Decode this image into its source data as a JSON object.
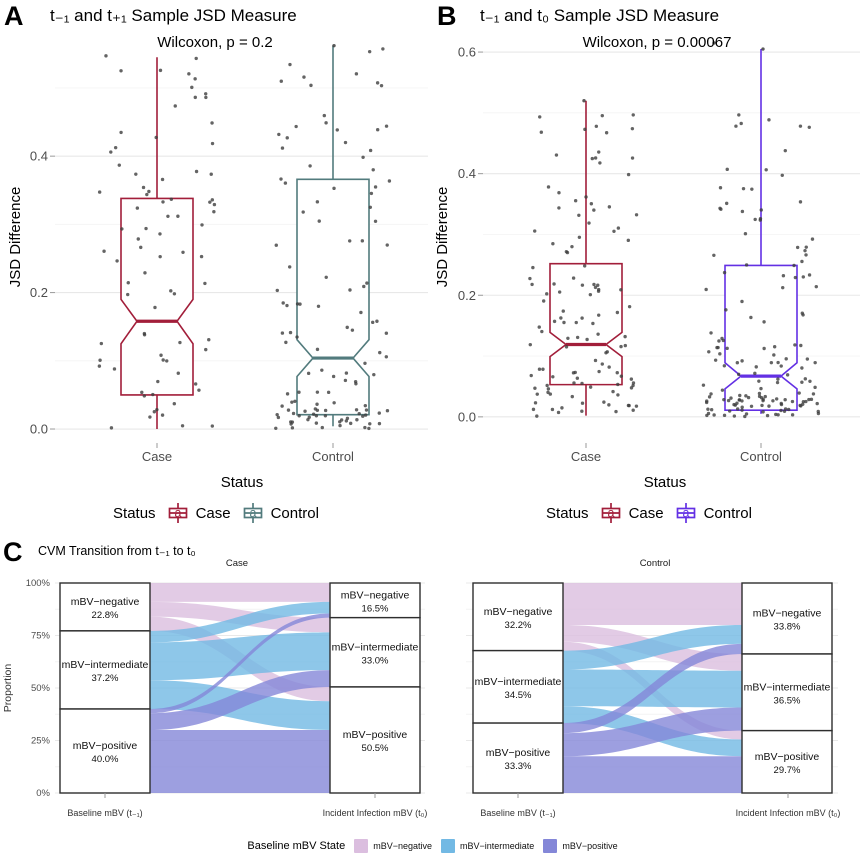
{
  "figure": {
    "panel_letters": {
      "a": "A",
      "b": "B",
      "c": "C"
    }
  },
  "chart_data": {
    "a": {
      "type": "boxplot-jitter",
      "title": "t₋₁ and t₊₁ Sample JSD Measure",
      "annotation": "Wilcoxon, p = 0.2",
      "xlabel": "Status",
      "ylabel": "JSD Difference",
      "yticks": [
        "0.0",
        "0.2",
        "0.4"
      ],
      "ytick_values": [
        0,
        0.2,
        0.4
      ],
      "ylim": [
        -0.0205,
        0.582
      ],
      "grid": true,
      "legend": {
        "title": "Status",
        "key_glyph": "a",
        "position": "bottom"
      },
      "groups": [
        {
          "label": "Case",
          "color": "#A21E3A",
          "box": {
            "whisker_low": 0.0,
            "q1": 0.05,
            "median": 0.158,
            "q3": 0.338,
            "whisker_high": 0.545,
            "notch_low": 0.125,
            "notch_high": 0.19
          },
          "points": {
            "n": 80,
            "seed": 7,
            "strata": [
              [
                0.26,
                0.0,
                0.07
              ],
              [
                0.24,
                0.07,
                0.2
              ],
              [
                0.28,
                0.2,
                0.38
              ],
              [
                0.22,
                0.38,
                0.55
              ]
            ]
          },
          "extra_points": []
        },
        {
          "label": "Control",
          "color": "#527B7D",
          "box": {
            "whisker_low": 0.004,
            "q1": 0.021,
            "median": 0.104,
            "q3": 0.366,
            "whisker_high": 0.562,
            "notch_low": 0.077,
            "notch_high": 0.131
          },
          "points": {
            "n": 120,
            "seed": 13,
            "strata": [
              [
                0.3,
                0.0,
                0.03
              ],
              [
                0.17,
                0.03,
                0.12
              ],
              [
                0.23,
                0.12,
                0.3
              ],
              [
                0.2,
                0.3,
                0.45
              ],
              [
                0.1,
                0.45,
                0.56
              ]
            ]
          },
          "extra_points": [
            {
              "dx": 1,
              "v": 0.562
            }
          ]
        }
      ]
    },
    "b": {
      "type": "boxplot-jitter",
      "title": "t₋₁ and t₀ Sample JSD Measure",
      "annotation": "Wilcoxon, p = 0.00067",
      "xlabel": "Status",
      "ylabel": "JSD Difference",
      "yticks": [
        "0.0",
        "0.2",
        "0.4",
        "0.6"
      ],
      "ytick_values": [
        0,
        0.2,
        0.4,
        0.6
      ],
      "ylim": [
        -0.043,
        0.633
      ],
      "grid": true,
      "legend": {
        "title": "Status",
        "key_glyph": "a",
        "position": "bottom"
      },
      "groups": [
        {
          "label": "Case",
          "color": "#A21E3A",
          "box": {
            "whisker_low": 0.002,
            "q1": 0.053,
            "median": 0.119,
            "q3": 0.252,
            "whisker_high": 0.52,
            "notch_low": 0.099,
            "notch_high": 0.139
          },
          "points": {
            "n": 120,
            "seed": 21,
            "strata": [
              [
                0.4,
                0.0,
                0.1
              ],
              [
                0.28,
                0.1,
                0.24
              ],
              [
                0.2,
                0.24,
                0.4
              ],
              [
                0.12,
                0.4,
                0.52
              ]
            ]
          },
          "extra_points": [
            {
              "dx": -2,
              "v": 0.52
            }
          ]
        },
        {
          "label": "Control",
          "color": "#6330E4",
          "box": {
            "whisker_low": 0.005,
            "q1": 0.011,
            "median": 0.067,
            "q3": 0.249,
            "whisker_high": 0.605,
            "notch_low": 0.046,
            "notch_high": 0.089
          },
          "points": {
            "n": 150,
            "seed": 42,
            "strata": [
              [
                0.42,
                0.0,
                0.04
              ],
              [
                0.2,
                0.04,
                0.13
              ],
              [
                0.18,
                0.13,
                0.28
              ],
              [
                0.13,
                0.28,
                0.42
              ],
              [
                0.07,
                0.42,
                0.52
              ]
            ]
          },
          "extra_points": [
            {
              "dx": -47,
              "v": 0.615
            },
            {
              "dx": 2,
              "v": 0.605
            }
          ]
        }
      ]
    },
    "c": {
      "type": "alluvial",
      "title": "CVM Transition from t₋₁ to t₀",
      "ylabel": "Proportion",
      "yticks": [
        "0%",
        "25%",
        "50%",
        "75%",
        "100%"
      ],
      "ytick_values": [
        0,
        25,
        50,
        75,
        100
      ],
      "xlabels": [
        "Baseline mBV (t₋₁)",
        "Incident Infection mBV (t₀)"
      ],
      "strata": [
        "mBV−negative",
        "mBV−intermediate",
        "mBV−positive"
      ],
      "colors": [
        "#DBBEDF",
        "#72B9E4",
        "#8487D8"
      ],
      "legend": {
        "title": "Baseline mBV State",
        "items": [
          "mBV−negative",
          "mBV−intermediate",
          "mBV−positive"
        ]
      },
      "facets": [
        {
          "label": "Case",
          "left_pct": [
            22.8,
            37.2,
            40.0
          ],
          "right_pct": [
            16.5,
            33.0,
            50.5
          ],
          "flows": [
            [
              9.0,
              7.0,
              6.8
            ],
            [
              5.5,
              18.0,
              13.7
            ],
            [
              2.0,
              8.0,
              30.0
            ]
          ]
        },
        {
          "label": "Control",
          "left_pct": [
            32.2,
            34.5,
            33.3
          ],
          "right_pct": [
            33.8,
            36.5,
            29.7
          ],
          "flows": [
            [
              20.0,
              8.0,
              4.2
            ],
            [
              9.0,
              17.5,
              8.0
            ],
            [
              4.8,
              11.0,
              17.5
            ]
          ]
        }
      ]
    }
  }
}
